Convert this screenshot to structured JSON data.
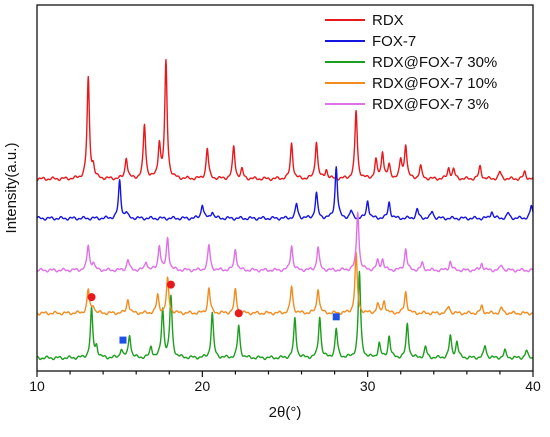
{
  "chart_data": {
    "type": "line",
    "title": "",
    "xlabel": "2θ(°)",
    "ylabel": "Intensity(a.u.)",
    "xlim": [
      10,
      40
    ],
    "xticks": [
      10,
      20,
      30,
      40
    ],
    "y_tick_labels": "none",
    "grid": false,
    "legend_position": "top-right",
    "series": [
      {
        "name": "RDX",
        "color": "#e8191c",
        "baseline": 1.0,
        "peaks": [
          [
            13.1,
            0.56
          ],
          [
            13.4,
            0.06
          ],
          [
            15.4,
            0.12
          ],
          [
            16.5,
            0.3
          ],
          [
            17.4,
            0.19
          ],
          [
            17.8,
            0.65
          ],
          [
            20.3,
            0.17
          ],
          [
            21.9,
            0.18
          ],
          [
            22.4,
            0.05
          ],
          [
            25.4,
            0.2
          ],
          [
            26.9,
            0.21
          ],
          [
            27.5,
            0.05
          ],
          [
            29.3,
            0.38
          ],
          [
            30.5,
            0.1
          ],
          [
            30.9,
            0.15
          ],
          [
            31.3,
            0.07
          ],
          [
            32.0,
            0.1
          ],
          [
            32.3,
            0.19
          ],
          [
            33.2,
            0.07
          ],
          [
            34.9,
            0.06
          ],
          [
            35.2,
            0.05
          ],
          [
            36.8,
            0.07
          ],
          [
            38.0,
            0.04
          ],
          [
            39.5,
            0.04
          ]
        ]
      },
      {
        "name": "FOX-7",
        "color": "#1515e0",
        "baseline": 0.78,
        "peaks": [
          [
            15.0,
            0.21
          ],
          [
            15.4,
            0.03
          ],
          [
            20.0,
            0.08
          ],
          [
            20.6,
            0.04
          ],
          [
            25.7,
            0.08
          ],
          [
            26.9,
            0.14
          ],
          [
            28.1,
            0.29
          ],
          [
            29.0,
            0.04
          ],
          [
            30.0,
            0.1
          ],
          [
            31.3,
            0.09
          ],
          [
            33.0,
            0.05
          ],
          [
            33.9,
            0.04
          ],
          [
            37.5,
            0.04
          ],
          [
            38.5,
            0.03
          ],
          [
            39.9,
            0.07
          ]
        ]
      },
      {
        "name": "RDX@FOX-7 30%",
        "color": "#1e9e1e",
        "baseline": 0.0,
        "peaks": [
          [
            13.3,
            0.27
          ],
          [
            13.6,
            0.06
          ],
          [
            15.1,
            0.05
          ],
          [
            15.6,
            0.13
          ],
          [
            16.9,
            0.06
          ],
          [
            17.6,
            0.27
          ],
          [
            18.1,
            0.34
          ],
          [
            20.6,
            0.25
          ],
          [
            22.2,
            0.18
          ],
          [
            25.6,
            0.22
          ],
          [
            27.1,
            0.23
          ],
          [
            28.1,
            0.16
          ],
          [
            29.5,
            0.48
          ],
          [
            30.7,
            0.08
          ],
          [
            31.3,
            0.12
          ],
          [
            32.4,
            0.19
          ],
          [
            33.5,
            0.06
          ],
          [
            35.0,
            0.12
          ],
          [
            35.4,
            0.09
          ],
          [
            37.1,
            0.07
          ],
          [
            38.3,
            0.04
          ],
          [
            39.6,
            0.04
          ]
        ]
      },
      {
        "name": "RDX@FOX-7 10%",
        "color": "#f28c1e",
        "baseline": 0.25,
        "peaks": [
          [
            13.1,
            0.13
          ],
          [
            13.4,
            0.04
          ],
          [
            15.5,
            0.08
          ],
          [
            17.3,
            0.1
          ],
          [
            17.9,
            0.19
          ],
          [
            20.4,
            0.14
          ],
          [
            22.0,
            0.13
          ],
          [
            25.4,
            0.15
          ],
          [
            27.0,
            0.14
          ],
          [
            29.3,
            0.33
          ],
          [
            30.6,
            0.05
          ],
          [
            31.0,
            0.07
          ],
          [
            32.3,
            0.12
          ],
          [
            34.9,
            0.04
          ],
          [
            36.9,
            0.04
          ],
          [
            38.1,
            0.03
          ]
        ]
      },
      {
        "name": "RDX@FOX-7 3%",
        "color": "#e070e8",
        "baseline": 0.49,
        "peaks": [
          [
            13.1,
            0.14
          ],
          [
            13.4,
            0.04
          ],
          [
            15.5,
            0.06
          ],
          [
            16.6,
            0.05
          ],
          [
            17.4,
            0.14
          ],
          [
            17.9,
            0.18
          ],
          [
            20.4,
            0.14
          ],
          [
            22.0,
            0.12
          ],
          [
            25.4,
            0.14
          ],
          [
            27.0,
            0.13
          ],
          [
            29.4,
            0.33
          ],
          [
            30.6,
            0.05
          ],
          [
            30.9,
            0.06
          ],
          [
            32.3,
            0.12
          ],
          [
            33.3,
            0.04
          ],
          [
            35.0,
            0.05
          ],
          [
            36.9,
            0.04
          ],
          [
            38.1,
            0.03
          ]
        ]
      }
    ],
    "markers": [
      {
        "shape": "circle",
        "color": "#e8191c",
        "x": 13.3,
        "y": 0.34
      },
      {
        "shape": "circle",
        "color": "#e8191c",
        "x": 18.1,
        "y": 0.41
      },
      {
        "shape": "circle",
        "color": "#e8191c",
        "x": 22.2,
        "y": 0.25
      },
      {
        "shape": "square",
        "color": "#1e50e8",
        "x": 15.2,
        "y": 0.1
      },
      {
        "shape": "square",
        "color": "#1e50e8",
        "x": 28.1,
        "y": 0.23
      }
    ]
  }
}
